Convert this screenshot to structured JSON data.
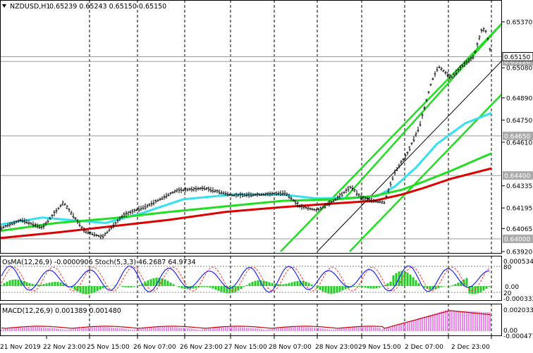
{
  "header": {
    "symbol": "NZDUSD,H1",
    "ohlc": "0.65239 0.65243 0.65150 0.65150"
  },
  "price_scale": {
    "labels": [
      {
        "value": 0.6537,
        "text": "0.65370"
      },
      {
        "value": 0.6508,
        "text": "0.65080"
      },
      {
        "value": 0.6489,
        "text": "0.64890"
      },
      {
        "value": 0.6475,
        "text": "0.64750"
      },
      {
        "value": 0.6461,
        "text": "0.64610"
      },
      {
        "value": 0.64335,
        "text": "0.64335"
      },
      {
        "value": 0.64195,
        "text": "0.64195"
      },
      {
        "value": 0.64065,
        "text": "0.64065"
      },
      {
        "value": 0.6392,
        "text": "0.63920"
      }
    ],
    "current_price": {
      "value": 0.6515,
      "text": "0.65150"
    },
    "levels": [
      {
        "value": 0.6512,
        "text": "0.65120"
      },
      {
        "value": 0.6465,
        "text": "0.64650"
      },
      {
        "value": 0.644,
        "text": "0.64400"
      },
      {
        "value": 0.64,
        "text": "0.64000"
      }
    ]
  },
  "osc1": {
    "label": "OsMA(12,26,9) -0.0000906  Stoch(5,3,3) 46.2687 64.9734",
    "scale": [
      "0.0005343",
      "80",
      "0.00",
      "20",
      "-0.000332"
    ]
  },
  "osc2": {
    "label": "MACD(12,26,9) 0.001389 0.001480",
    "scale": [
      "0.002033",
      "0.00",
      "-0.000477"
    ]
  },
  "time_axis": [
    "21 Nov 2019",
    "22 Nov 23:00",
    "25 Nov 15:00",
    "26 Nov 07:00",
    "26 Nov 23:00",
    "27 Nov 15:00",
    "28 Nov 07:00",
    "28 Nov 23:00",
    "29 Nov 15:00",
    "2 Dec 07:00",
    "2 Dec 23:00"
  ],
  "colors": {
    "ma_fast": "#33e0f0",
    "ma_mid": "#22dd22",
    "ma_slow": "#dd0000",
    "channel": "#22dd22",
    "histogram": "#22cc22",
    "stoch_main": "#2222ff",
    "stoch_signal": "#ff3333",
    "macd_bars": "#ee88ee",
    "macd_signal": "#cc0000"
  }
}
